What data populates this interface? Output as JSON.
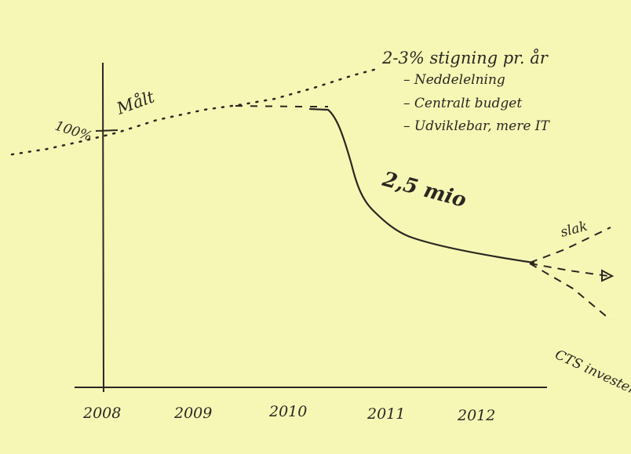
{
  "chart_data": {
    "type": "line",
    "title": "",
    "xlabel": "",
    "ylabel": "",
    "x": [
      "2008",
      "2009",
      "2010",
      "2011",
      "2012"
    ],
    "ytick_label": "100%",
    "series": [
      {
        "key": "measured",
        "label": "Målt",
        "style": "dotted",
        "note": "2-3% stigning pr. år",
        "bullets": [
          "– Neddelelning",
          "– Centralt budget",
          "– Udviklebar, mere IT"
        ]
      },
      {
        "key": "actual",
        "label": "2,5 mio",
        "style": "solid"
      },
      {
        "key": "scenarios",
        "labels": [
          "slak",
          "CTS investering"
        ],
        "style": "dashed"
      }
    ]
  }
}
